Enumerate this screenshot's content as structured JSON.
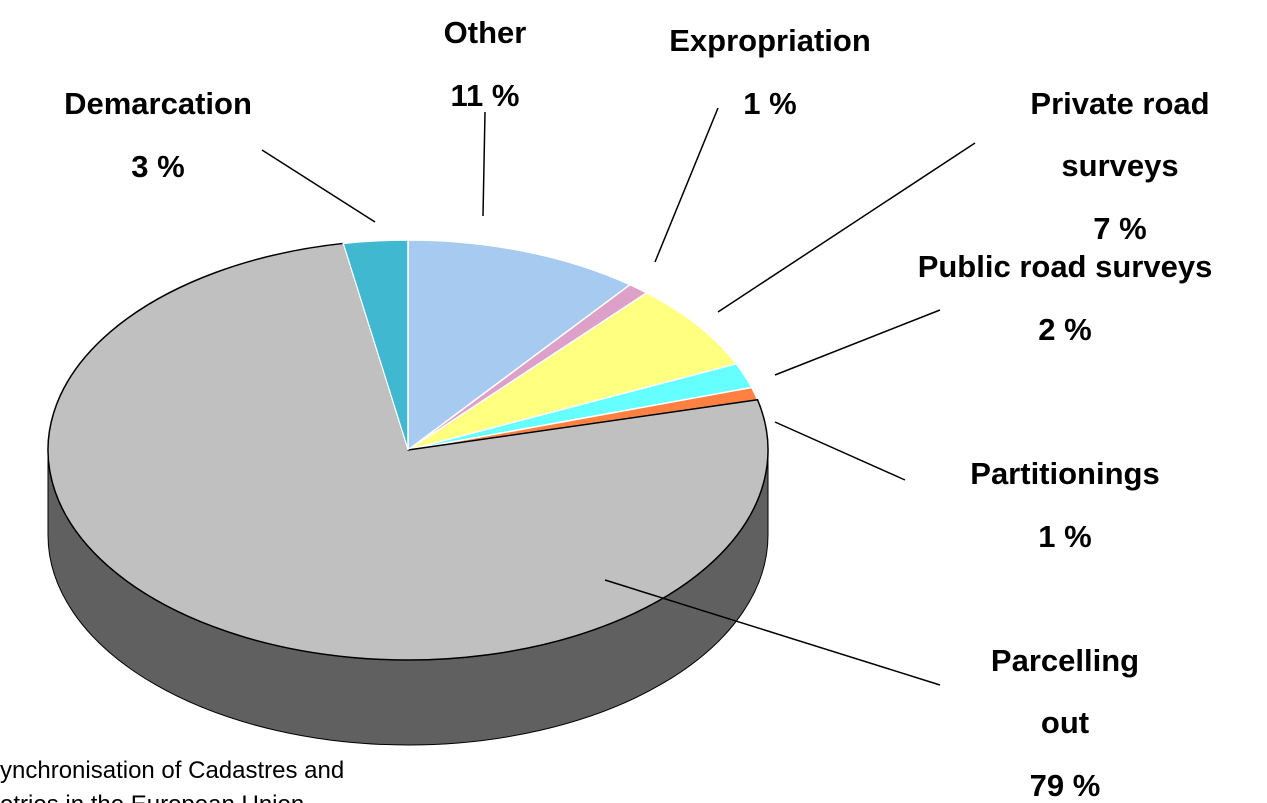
{
  "chart_data": {
    "type": "pie",
    "categories": [
      "Other",
      "Expropriation",
      "Private road surveys",
      "Public road surveys",
      "Partitionings",
      "Parcelling out",
      "Demarcation"
    ],
    "values": [
      11,
      1,
      7,
      2,
      1,
      79,
      3
    ],
    "value_labels": [
      "11 %",
      "1 %",
      "7 %",
      "2 %",
      "1 %",
      "79 %",
      "3 %"
    ],
    "colors": [
      "#a6caf0",
      "#dda0c8",
      "#ffff80",
      "#66ffff",
      "#ff8040",
      "#c0c0c0",
      "#40b8d0"
    ],
    "footer": [
      "ynchronisation of Cadastres and",
      "etries in the European Union"
    ]
  }
}
